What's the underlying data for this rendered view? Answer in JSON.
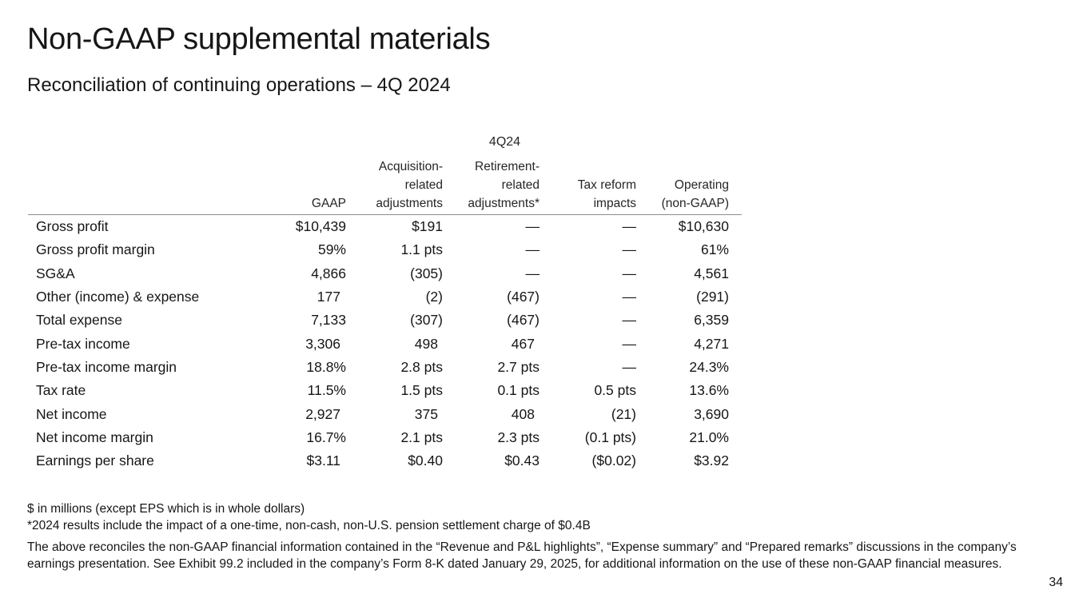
{
  "title": "Non-GAAP supplemental materials",
  "subtitle": "Reconciliation of continuing operations – 4Q 2024",
  "table": {
    "period": "4Q24",
    "columns": [
      {
        "lines": [
          "GAAP"
        ]
      },
      {
        "lines": [
          "Acquisition-",
          "related",
          "adjustments"
        ]
      },
      {
        "lines": [
          "Retirement-",
          "related",
          "adjustments*"
        ]
      },
      {
        "lines": [
          "Tax reform",
          "impacts"
        ]
      },
      {
        "lines": [
          "Operating",
          "(non-GAAP)"
        ]
      }
    ],
    "rows": [
      {
        "label": "Gross profit",
        "gaap": "$10,439",
        "acquisition": "$191",
        "retirement": "—",
        "tax_reform": "—",
        "operating": "$10,630"
      },
      {
        "label": "Gross profit margin",
        "gaap": "59%",
        "acquisition": "1.1 pts",
        "retirement": "—",
        "tax_reform": "—",
        "operating": "61%"
      },
      {
        "label": "SG&A",
        "gaap": "4,866",
        "acquisition": "(305)",
        "retirement": "—",
        "tax_reform": "—",
        "operating": "4,561"
      },
      {
        "label": "Other (income) & expense",
        "gaap": "177",
        "acquisition": "(2)",
        "retirement": "(467)",
        "tax_reform": "—",
        "operating": "(291)"
      },
      {
        "label": "Total expense",
        "gaap": "7,133",
        "acquisition": "(307)",
        "retirement": "(467)",
        "tax_reform": "—",
        "operating": "6,359"
      },
      {
        "label": "Pre-tax income",
        "gaap": "3,306",
        "acquisition": "498",
        "retirement": "467",
        "tax_reform": "—",
        "operating": "4,271"
      },
      {
        "label": "Pre-tax income margin",
        "gaap": "18.8%",
        "acquisition": "2.8 pts",
        "retirement": "2.7 pts",
        "tax_reform": "—",
        "operating": "24.3%"
      },
      {
        "label": "Tax rate",
        "gaap": "11.5%",
        "acquisition": "1.5 pts",
        "retirement": "0.1 pts",
        "tax_reform": "0.5 pts",
        "operating": "13.6%"
      },
      {
        "label": "Net income",
        "gaap": "2,927",
        "acquisition": "375",
        "retirement": "408",
        "tax_reform": "(21)",
        "operating": "3,690"
      },
      {
        "label": "Net income margin",
        "gaap": "16.7%",
        "acquisition": "2.1 pts",
        "retirement": "2.3 pts",
        "tax_reform": "(0.1 pts)",
        "operating": "21.0%"
      },
      {
        "label": "Earnings per share",
        "gaap": "$3.11",
        "acquisition": "$0.40",
        "retirement": "$0.43",
        "tax_reform": "($0.02)",
        "operating": "$3.92"
      }
    ]
  },
  "footnotes": {
    "units": "$ in millions (except EPS which is in whole dollars)",
    "pension": "*2024 results include the impact of a one-time, non-cash, non-U.S. pension settlement charge of $0.4B",
    "reconcile": "The above reconciles the non-GAAP financial information contained in the “Revenue and P&L highlights”, “Expense summary” and “Prepared remarks” discussions in the company’s earnings presentation. See Exhibit 99.2 included in the company’s Form 8-K dated January 29, 2025, for additional information on the use of these non-GAAP financial measures."
  },
  "page_number": "34"
}
